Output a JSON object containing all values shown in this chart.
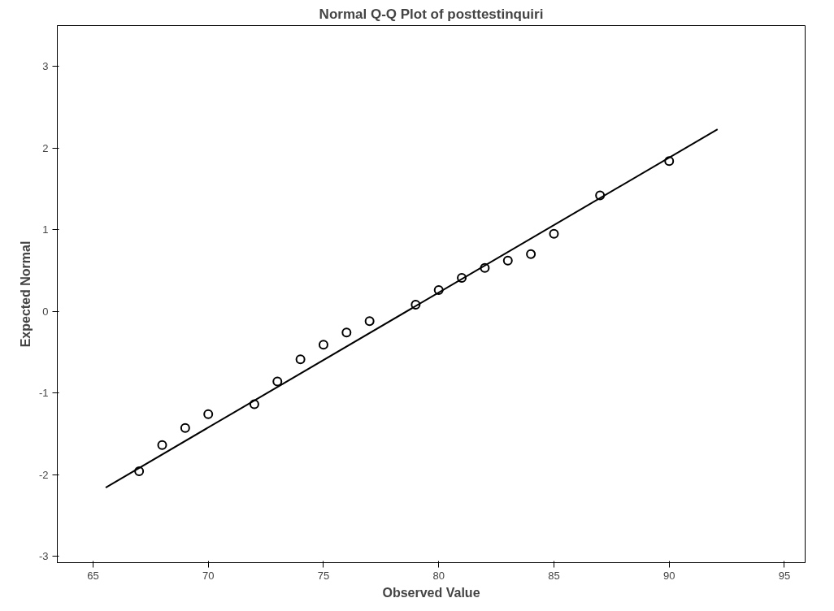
{
  "chart_data": {
    "type": "scatter",
    "title": "Normal Q-Q Plot of posttestinquiri",
    "xlabel": "Observed Value",
    "ylabel": "Expected Normal",
    "xlim": [
      63.45,
      95.9
    ],
    "ylim": [
      -3.08,
      3.5
    ],
    "xticks": [
      65,
      70,
      75,
      80,
      85,
      90,
      95
    ],
    "yticks": [
      -3,
      -2,
      -1,
      0,
      1,
      2,
      3
    ],
    "grid": false,
    "series": [
      {
        "marker": "circle",
        "color": "#000000",
        "x": [
          67,
          68,
          69,
          70,
          72,
          73,
          74,
          75,
          76,
          77,
          79,
          80,
          81,
          82,
          83,
          84,
          85,
          87,
          90
        ],
        "values": [
          -1.96,
          -1.64,
          -1.43,
          -1.26,
          -1.14,
          -0.86,
          -0.59,
          -0.41,
          -0.26,
          -0.12,
          0.08,
          0.26,
          0.41,
          0.53,
          0.62,
          0.7,
          0.95,
          1.42,
          1.84
        ]
      },
      {
        "type": "line",
        "color": "#000000",
        "line_style": "solid",
        "x": [
          65.55,
          92.1
        ],
        "values": [
          -2.16,
          2.23
        ]
      }
    ]
  }
}
